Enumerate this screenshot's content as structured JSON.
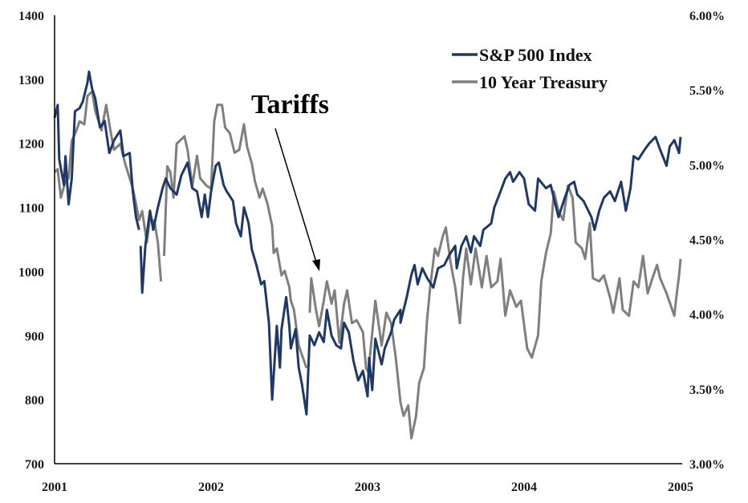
{
  "chart_data": {
    "type": "line",
    "title": "",
    "xlabel": "",
    "ylabel": "",
    "y2label": "",
    "xlim": [
      2001,
      2005
    ],
    "ylim": [
      700,
      1400
    ],
    "y2lim": [
      3.0,
      6.0
    ],
    "grid": false,
    "legend_placement": "top-right",
    "x_ticks": [
      "2001",
      "2002",
      "2003",
      "2004",
      "2005"
    ],
    "y_ticks": [
      "1400",
      "1300",
      "1200",
      "1100",
      "1000",
      "900",
      "800",
      "700"
    ],
    "y2_ticks": [
      "6.00%",
      "5.50%",
      "5.00%",
      "4.50%",
      "4.00%",
      "3.50%",
      "3.00%"
    ],
    "annotation": {
      "text": "Tariffs",
      "points_to_x": 2002.7
    },
    "series": [
      {
        "name": "S&P 500 Index",
        "axis": "left",
        "color": "#1f3864",
        "x": [
          2001.0,
          2001.02,
          2001.03,
          2001.06,
          2001.07,
          2001.09,
          2001.11,
          2001.13,
          2001.16,
          2001.18,
          2001.21,
          2001.22,
          2001.24,
          2001.26,
          2001.29,
          2001.32,
          2001.35,
          2001.38,
          2001.42,
          2001.44,
          2001.48,
          2001.5,
          2001.52,
          2001.54,
          null,
          2001.55,
          2001.56,
          2001.58,
          2001.61,
          2001.63,
          2001.66,
          2001.69,
          2001.71,
          2001.74,
          2001.78,
          2001.81,
          2001.85,
          2001.88,
          2001.91,
          2001.94,
          2001.96,
          2001.98,
          2002.0,
          2002.03,
          2002.05,
          2002.08,
          2002.1,
          2002.14,
          2002.16,
          2002.19,
          2002.21,
          2002.24,
          2002.26,
          2002.29,
          2002.32,
          2002.34,
          2002.37,
          2002.39,
          2002.42,
          2002.44,
          2002.45,
          2002.48,
          2002.5,
          2002.51,
          2002.54,
          2002.56,
          2002.58,
          2002.61,
          2002.63,
          2002.66,
          2002.69,
          2002.72,
          2002.74,
          2002.77,
          2002.8,
          2002.83,
          2002.85,
          2002.88,
          2002.91,
          2002.94,
          2002.97,
          2003.0,
          2003.01,
          2003.03,
          2003.05,
          2003.09,
          2003.11,
          2003.15,
          2003.17,
          2003.21,
          2003.21,
          2003.25,
          2003.28,
          2003.3,
          2003.32,
          2003.35,
          2003.38,
          2003.42,
          2003.45,
          2003.49,
          2003.52,
          2003.56,
          2003.57,
          2003.6,
          2003.63,
          2003.66,
          2003.68,
          2003.72,
          2003.74,
          2003.79,
          2003.81,
          2003.85,
          2003.88,
          2003.91,
          2003.93,
          2003.97,
          2004.0,
          2004.03,
          2004.07,
          2004.09,
          2004.14,
          2004.17,
          2004.2,
          2004.22,
          2004.26,
          2004.29,
          2004.32,
          2004.34,
          2004.38,
          2004.43,
          2004.45,
          2004.48,
          2004.51,
          2004.55,
          2004.58,
          2004.62,
          2004.65,
          2004.68,
          2004.7,
          2004.73,
          2004.77,
          2004.8,
          2004.84,
          2004.87,
          2004.91,
          2004.93,
          2004.96,
          2004.99,
          2005.0
        ],
        "y": [
          1240,
          1260,
          1175,
          1135,
          1180,
          1105,
          1145,
          1250,
          1255,
          1265,
          1295,
          1312,
          1285,
          1270,
          1225,
          1235,
          1185,
          1205,
          1220,
          1180,
          1185,
          1125,
          1085,
          1065,
          null,
          1040,
          967,
          1040,
          1095,
          1065,
          1100,
          1130,
          1145,
          1130,
          1120,
          1150,
          1170,
          1130,
          1125,
          1085,
          1120,
          1085,
          1125,
          1165,
          1170,
          1135,
          1125,
          1110,
          1075,
          1055,
          1100,
          1075,
          1035,
          1010,
          980,
          985,
          920,
          800,
          915,
          850,
          910,
          960,
          915,
          880,
          910,
          850,
          825,
          777,
          900,
          885,
          905,
          890,
          940,
          900,
          885,
          880,
          920,
          905,
          860,
          830,
          845,
          805,
          865,
          815,
          895,
          855,
          880,
          905,
          925,
          940,
          920,
          960,
          995,
          1010,
          980,
          1005,
          990,
          975,
          1005,
          1010,
          1025,
          1040,
          1005,
          1040,
          1055,
          1030,
          1055,
          1040,
          1065,
          1075,
          1100,
          1125,
          1145,
          1155,
          1140,
          1155,
          1145,
          1105,
          1095,
          1145,
          1130,
          1135,
          1105,
          1085,
          1115,
          1135,
          1140,
          1120,
          1110,
          1085,
          1065,
          1095,
          1115,
          1125,
          1110,
          1140,
          1095,
          1130,
          1180,
          1175,
          1190,
          1200,
          1210,
          1190,
          1165,
          1195,
          1205,
          1185,
          1210
        ]
      },
      {
        "name": "10 Year Treasury",
        "axis": "right",
        "color": "#7f7f7f",
        "x": [
          2001.0,
          2001.02,
          2001.04,
          2001.07,
          2001.09,
          2001.11,
          2001.14,
          2001.16,
          2001.19,
          2001.21,
          2001.24,
          2001.26,
          2001.3,
          2001.33,
          2001.36,
          2001.38,
          2001.42,
          2001.45,
          2001.48,
          2001.5,
          2001.52,
          2001.54,
          2001.56,
          2001.59,
          2001.61,
          2001.64,
          2001.66,
          2001.68,
          2001.68,
          null,
          2001.7,
          2001.72,
          2001.74,
          2001.76,
          2001.78,
          2001.8,
          2001.83,
          2001.85,
          2001.88,
          2001.91,
          2001.93,
          2001.97,
          2002.0,
          2002.02,
          2002.04,
          2002.07,
          2002.09,
          2002.12,
          2002.15,
          2002.18,
          2002.21,
          2002.23,
          2002.26,
          2002.28,
          2002.31,
          2002.33,
          2002.36,
          2002.39,
          2002.4,
          2002.42,
          2002.45,
          2002.47,
          2002.5,
          2002.51,
          2002.53,
          2002.56,
          2002.58,
          2002.61,
          null,
          2002.63,
          2002.64,
          2002.67,
          2002.69,
          2002.72,
          2002.74,
          2002.77,
          2002.79,
          2002.82,
          2002.85,
          2002.87,
          2002.9,
          2002.93,
          2002.97,
          2002.99,
          2003.02,
          2003.01,
          2003.05,
          2003.09,
          2003.12,
          2003.15,
          2003.18,
          2003.21,
          2003.23,
          2003.26,
          2003.28,
          2003.31,
          2003.33,
          2003.36,
          2003.38,
          2003.4,
          2003.43,
          2003.45,
          2003.48,
          2003.5,
          2003.53,
          2003.56,
          2003.59,
          2003.61,
          2003.63,
          2003.66,
          2003.69,
          2003.73,
          2003.76,
          2003.79,
          2003.83,
          2003.85,
          2003.88,
          2003.91,
          2003.95,
          2003.98,
          2004.02,
          2004.05,
          2004.09,
          2004.11,
          2004.14,
          2004.17,
          2004.19,
          2004.22,
          2004.25,
          2004.28,
          2004.31,
          2004.33,
          2004.37,
          2004.39,
          2004.42,
          2004.44,
          2004.48,
          2004.51,
          2004.55,
          2004.57,
          2004.61,
          2004.63,
          2004.67,
          2004.7,
          2004.73,
          2004.76,
          2004.79,
          2004.82,
          2004.85,
          2004.87,
          2004.91,
          2004.94,
          2004.96,
          2004.97,
          2004.99,
          2005.0
        ],
        "y": [
          4.95,
          4.97,
          4.78,
          4.89,
          4.91,
          5.16,
          5.23,
          5.29,
          5.27,
          5.46,
          5.49,
          5.36,
          5.23,
          5.4,
          5.21,
          5.1,
          5.14,
          5.01,
          4.91,
          4.84,
          4.74,
          4.63,
          4.69,
          4.48,
          4.65,
          4.61,
          4.48,
          4.22,
          4.22,
          null,
          4.39,
          4.99,
          4.95,
          4.78,
          5.14,
          5.16,
          5.19,
          5.1,
          4.86,
          5.06,
          4.91,
          4.86,
          4.84,
          5.29,
          5.4,
          5.4,
          5.25,
          5.21,
          5.08,
          5.1,
          5.27,
          5.12,
          5.01,
          4.89,
          4.78,
          4.84,
          4.74,
          4.59,
          4.41,
          4.44,
          4.26,
          4.29,
          4.18,
          4.09,
          4.03,
          3.79,
          3.73,
          3.64,
          null,
          4.01,
          4.24,
          4.03,
          3.92,
          4.09,
          4.22,
          4.07,
          4.16,
          3.81,
          4.07,
          4.16,
          3.94,
          3.96,
          3.88,
          3.64,
          3.58,
          3.66,
          4.09,
          3.79,
          4.01,
          3.94,
          3.71,
          3.41,
          3.32,
          3.39,
          3.17,
          3.32,
          3.54,
          3.64,
          3.96,
          4.18,
          4.44,
          4.39,
          4.52,
          4.58,
          4.35,
          4.18,
          3.94,
          4.24,
          4.44,
          4.2,
          4.44,
          4.18,
          4.39,
          4.18,
          4.22,
          4.37,
          3.99,
          4.16,
          4.05,
          4.09,
          3.77,
          3.71,
          3.86,
          4.22,
          4.41,
          4.54,
          4.82,
          4.69,
          4.63,
          4.86,
          4.78,
          4.48,
          4.44,
          4.37,
          4.61,
          4.24,
          4.22,
          4.26,
          4.11,
          4.01,
          4.24,
          4.03,
          3.99,
          4.22,
          4.18,
          4.39,
          4.14,
          4.24,
          4.33,
          4.24,
          4.14,
          4.05,
          3.99,
          4.09,
          4.26,
          4.37
        ]
      }
    ]
  }
}
